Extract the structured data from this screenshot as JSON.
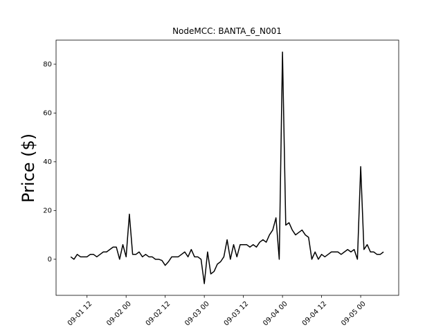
{
  "chart_data": {
    "type": "line",
    "title": "NodeMCC: BANTA_6_N001",
    "y_label": "Price ($)",
    "x": [
      "09-01 07",
      "09-01 08",
      "09-01 09",
      "09-01 10",
      "09-01 11",
      "09-01 12",
      "09-01 13",
      "09-01 14",
      "09-01 15",
      "09-01 16",
      "09-01 17",
      "09-01 18",
      "09-01 19",
      "09-01 20",
      "09-01 21",
      "09-01 22",
      "09-01 23",
      "09-02 00",
      "09-02 01",
      "09-02 02",
      "09-02 03",
      "09-02 04",
      "09-02 05",
      "09-02 06",
      "09-02 07",
      "09-02 08",
      "09-02 09",
      "09-02 10",
      "09-02 11",
      "09-02 12",
      "09-02 13",
      "09-02 14",
      "09-02 15",
      "09-02 16",
      "09-02 17",
      "09-02 18",
      "09-02 19",
      "09-02 20",
      "09-02 21",
      "09-02 22",
      "09-02 23",
      "09-03 00",
      "09-03 01",
      "09-03 02",
      "09-03 03",
      "09-03 04",
      "09-03 05",
      "09-03 06",
      "09-03 07",
      "09-03 08",
      "09-03 09",
      "09-03 10",
      "09-03 11",
      "09-03 12",
      "09-03 13",
      "09-03 14",
      "09-03 15",
      "09-03 16",
      "09-03 17",
      "09-03 18",
      "09-03 19",
      "09-03 20",
      "09-03 21",
      "09-03 22",
      "09-03 23",
      "09-04 00",
      "09-04 01",
      "09-04 02",
      "09-04 03",
      "09-04 04",
      "09-04 05",
      "09-04 06",
      "09-04 07",
      "09-04 08",
      "09-04 09",
      "09-04 10",
      "09-04 11",
      "09-04 12",
      "09-04 13",
      "09-04 14",
      "09-04 15",
      "09-04 16",
      "09-04 17",
      "09-04 18",
      "09-04 19",
      "09-04 20",
      "09-04 21",
      "09-04 22",
      "09-04 23",
      "09-05 00",
      "09-05 01",
      "09-05 02",
      "09-05 03",
      "09-05 04",
      "09-05 05",
      "09-05 06",
      "09-05 07"
    ],
    "series": [
      {
        "color": "#000000",
        "values": [
          1,
          0,
          2,
          1,
          1,
          1,
          2,
          2,
          1,
          2,
          3,
          3,
          4,
          5,
          5,
          0,
          6,
          1,
          18.5,
          2,
          2,
          3,
          1,
          2,
          1,
          1,
          0,
          0,
          -0.5,
          -2.5,
          -1,
          1,
          1,
          1,
          2,
          3,
          1,
          4,
          1,
          1,
          0,
          -10,
          3,
          -6,
          -5,
          -2,
          -1,
          1,
          8,
          0,
          6,
          1,
          6,
          6,
          6,
          5,
          6,
          5,
          7,
          8,
          7,
          10,
          12,
          17,
          0,
          85,
          14,
          15,
          12,
          10,
          11,
          12,
          10,
          9,
          0,
          3,
          0,
          2,
          1,
          2,
          3,
          3,
          3,
          2,
          3,
          4,
          3,
          4,
          0,
          38,
          4,
          6,
          3,
          3,
          2,
          2,
          3
        ]
      }
    ],
    "xlim": [
      "09-01 02:30",
      "09-05 11:40"
    ],
    "xticks": [
      "09-01 12",
      "09-02 00",
      "09-02 12",
      "09-03 00",
      "09-03 12",
      "09-04 00",
      "09-04 12",
      "09-05 00"
    ],
    "ylim": [
      -14.8,
      89.9
    ],
    "yticks": [
      0,
      20,
      40,
      60,
      80
    ]
  }
}
